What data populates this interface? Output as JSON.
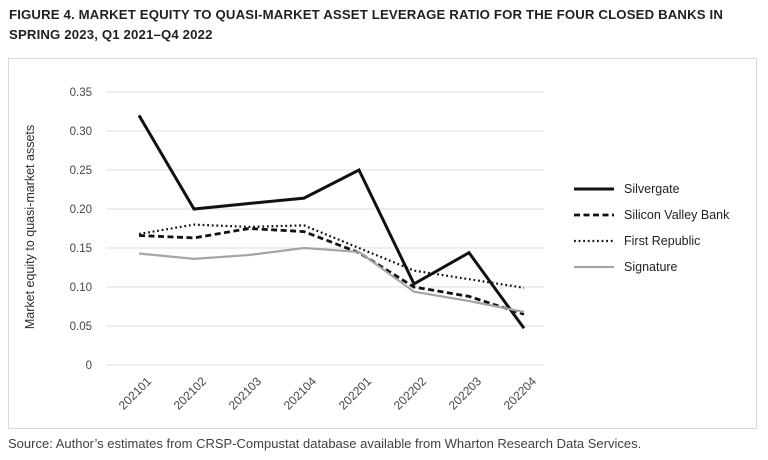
{
  "figure": {
    "title_line1": "FIGURE 4. MARKET EQUITY TO QUASI-MARKET ASSET LEVERAGE RATIO FOR THE FOUR CLOSED BANKS IN",
    "title_line2": "SPRING 2023, Q1 2021–Q4 2022",
    "source": "Source: Author’s estimates from CRSP-Compustat database available from Wharton Research Data Services."
  },
  "chart_data": {
    "type": "line",
    "title": "FIGURE 4. MARKET EQUITY TO QUASI-MARKET ASSET LEVERAGE RATIO FOR THE FOUR CLOSED BANKS IN SPRING 2023, Q1 2021–Q4 2022",
    "xlabel": "",
    "ylabel": "Market equity to quasi-market assets",
    "categories": [
      "202101",
      "202102",
      "202103",
      "202104",
      "202201",
      "202202",
      "202203",
      "202204"
    ],
    "yticks": [
      "0.35",
      "0.30",
      "0.25",
      "0.20",
      "0.15",
      "0.10",
      "0.05",
      "0"
    ],
    "ylim": [
      0,
      0.35
    ],
    "grid": "horizontal",
    "legend_position": "right",
    "series": [
      {
        "name": "Silvergate",
        "style": "solid",
        "color": "#111111",
        "width": 3,
        "values": [
          0.32,
          0.2,
          0.207,
          0.214,
          0.25,
          0.104,
          0.144,
          0.047
        ]
      },
      {
        "name": "Silicon Valley Bank",
        "style": "dashed",
        "color": "#111111",
        "width": 2.8,
        "dash": "6 3.5",
        "values": [
          0.166,
          0.163,
          0.175,
          0.171,
          0.144,
          0.1,
          0.088,
          0.065
        ]
      },
      {
        "name": "First Republic",
        "style": "dotted",
        "color": "#111111",
        "width": 2.2,
        "dash": "1.8 2.8",
        "values": [
          0.168,
          0.18,
          0.177,
          0.179,
          0.15,
          0.121,
          0.11,
          0.099
        ]
      },
      {
        "name": "Signature",
        "style": "solid",
        "color": "#a5a5a5",
        "width": 2.2,
        "values": [
          0.143,
          0.136,
          0.141,
          0.15,
          0.145,
          0.094,
          0.082,
          0.068
        ]
      }
    ]
  },
  "colors": {
    "grid": "#dcdcdc",
    "panel_border": "#d9d9d9",
    "title_text": "#231f20",
    "axis_text": "#454545"
  }
}
